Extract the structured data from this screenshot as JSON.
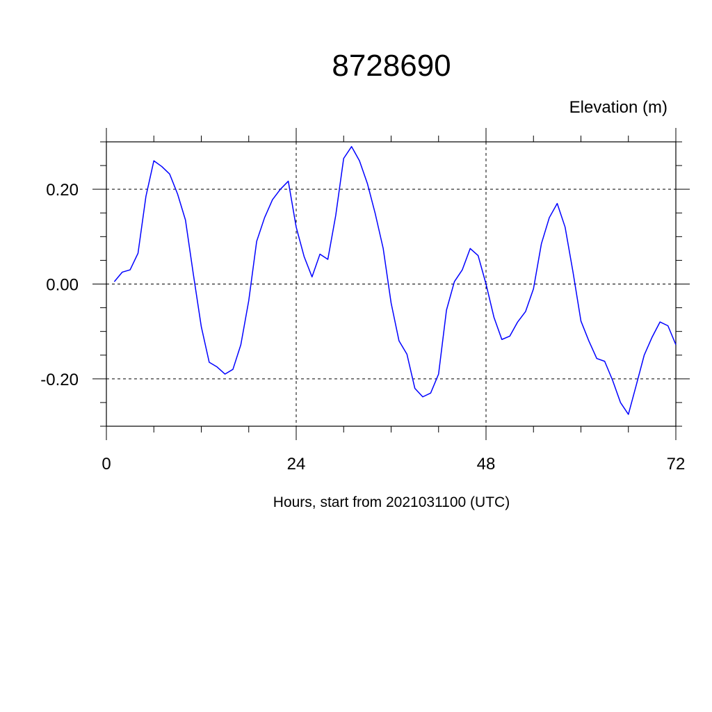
{
  "chart_data": {
    "type": "line",
    "title": "8728690",
    "unit_label": "Elevation (m)",
    "xlabel": "Hours, start from 2021031100 (UTC)",
    "xlim": [
      0,
      72
    ],
    "ylim": [
      -0.3,
      0.3
    ],
    "x_ticks": [
      0,
      24,
      48,
      72
    ],
    "x_tick_labels": [
      "0",
      "24",
      "48",
      "72"
    ],
    "x_minor_step": 6,
    "y_ticks": [
      -0.2,
      0.0,
      0.2
    ],
    "y_tick_labels": [
      "-0.20",
      "0.00",
      "0.20"
    ],
    "y_minor_step": 0.05,
    "grid": true,
    "line_color": "#0000ff",
    "series": [
      {
        "x": [
          1,
          2,
          3,
          4,
          5,
          6,
          7,
          8,
          9,
          10,
          11,
          12,
          13,
          14,
          15,
          16,
          17,
          18,
          19,
          20,
          21,
          22,
          23,
          24,
          25,
          26,
          27,
          28,
          29,
          30,
          31,
          32,
          33,
          34,
          35,
          36,
          37,
          38,
          39,
          40,
          41,
          42,
          43,
          44,
          45,
          46,
          47,
          48,
          49,
          50,
          51,
          52,
          53,
          54,
          55,
          56,
          57,
          58,
          59,
          60,
          61,
          62,
          63,
          64,
          65,
          66,
          67,
          68,
          69,
          70,
          71,
          72
        ],
        "values": [
          0.005,
          0.025,
          0.03,
          0.065,
          0.185,
          0.26,
          0.248,
          0.232,
          0.19,
          0.135,
          0.02,
          -0.09,
          -0.165,
          -0.175,
          -0.19,
          -0.18,
          -0.128,
          -0.035,
          0.09,
          0.14,
          0.178,
          0.2,
          0.217,
          0.12,
          0.058,
          0.015,
          0.063,
          0.052,
          0.145,
          0.265,
          0.29,
          0.26,
          0.212,
          0.148,
          0.075,
          -0.04,
          -0.12,
          -0.148,
          -0.22,
          -0.238,
          -0.23,
          -0.19,
          -0.055,
          0.005,
          0.03,
          0.075,
          0.06,
          0.0,
          -0.07,
          -0.117,
          -0.11,
          -0.08,
          -0.058,
          -0.01,
          0.085,
          0.14,
          0.17,
          0.12,
          0.025,
          -0.078,
          -0.12,
          -0.157,
          -0.163,
          -0.203,
          -0.25,
          -0.275,
          -0.213,
          -0.15,
          -0.112,
          -0.08,
          -0.088,
          -0.128
        ]
      }
    ]
  }
}
